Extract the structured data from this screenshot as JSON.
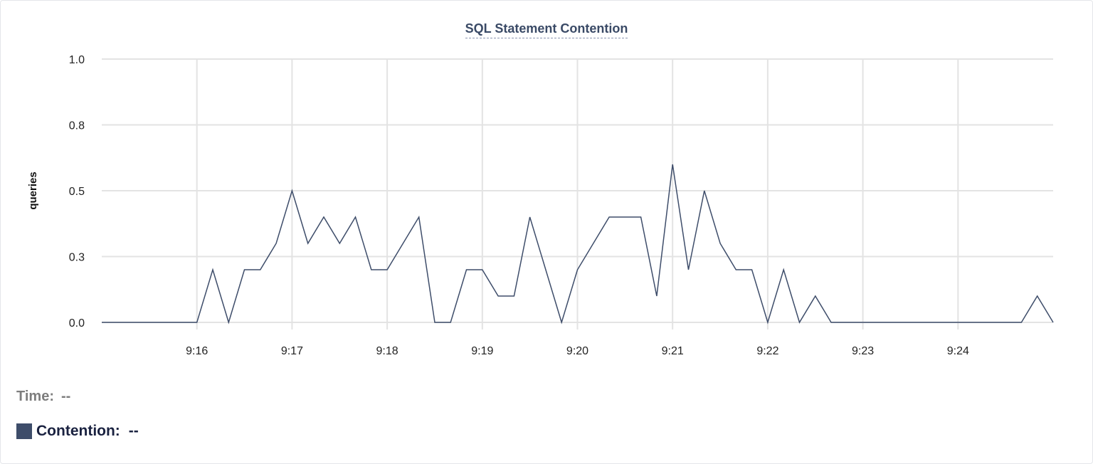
{
  "chart_data": {
    "type": "line",
    "title": "SQL Statement Contention",
    "xlabel": "",
    "ylabel": "queries",
    "x_start": "9:15:00",
    "x_end": "9:25:00",
    "x_interval_seconds": 10,
    "xlim": [
      "9:15:00",
      "9:25:00"
    ],
    "ylim": [
      0,
      1
    ],
    "grid": true,
    "x_ticks": [
      "9:16",
      "9:17",
      "9:18",
      "9:19",
      "9:20",
      "9:21",
      "9:22",
      "9:23",
      "9:24"
    ],
    "y_ticks": [
      {
        "value": 0,
        "label": "0.0"
      },
      {
        "value": 0.25,
        "label": "0.3"
      },
      {
        "value": 0.5,
        "label": "0.5"
      },
      {
        "value": 0.75,
        "label": "0.8"
      },
      {
        "value": 1,
        "label": "1.0"
      }
    ],
    "color": "#3e4d6a",
    "series": [
      {
        "name": "Contention",
        "values": [
          0,
          0,
          0,
          0,
          0,
          0,
          0,
          0.2,
          0,
          0.2,
          0.2,
          0.3,
          0.5,
          0.3,
          0.4,
          0.3,
          0.4,
          0.2,
          0.2,
          0.3,
          0.4,
          0,
          0,
          0.2,
          0.2,
          0.1,
          0.1,
          0.4,
          0.2,
          0,
          0.2,
          0.3,
          0.4,
          0.4,
          0.4,
          0.1,
          0.6,
          0.2,
          0.5,
          0.3,
          0.2,
          0.2,
          0,
          0.2,
          0,
          0.1,
          0,
          0,
          0,
          0,
          0,
          0,
          0,
          0,
          0,
          0,
          0,
          0,
          0,
          0.1,
          0
        ]
      }
    ]
  },
  "legend": {
    "time_label": "Time:",
    "time_value": "--",
    "series_label": "Contention:",
    "series_value": "--"
  }
}
